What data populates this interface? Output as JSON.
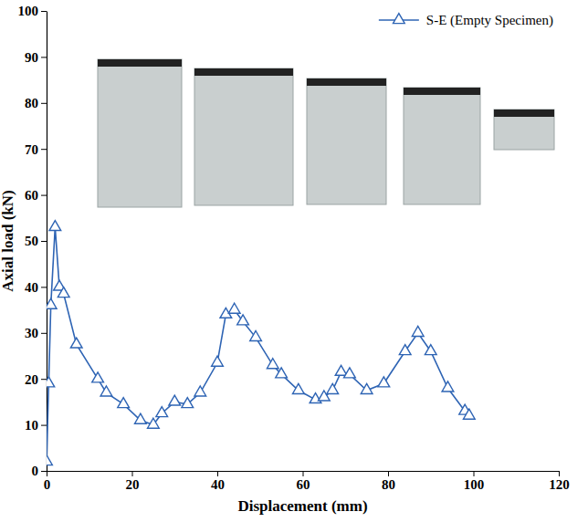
{
  "chart_data": {
    "type": "line",
    "x_label": "Displacement (mm)",
    "y_label": "Axial load (kN)",
    "x": [
      0,
      0.5,
      1,
      2,
      3,
      4,
      7,
      12,
      14,
      18,
      22,
      25,
      27,
      30,
      33,
      36,
      40,
      42,
      44,
      46,
      49,
      53,
      55,
      59,
      63,
      65,
      67,
      69,
      71,
      75,
      79,
      84,
      87,
      90,
      94,
      98,
      99
    ],
    "series": [
      {
        "name": "S-E (Empty Specimen)",
        "color": "#2e64b4",
        "marker": "triangle",
        "line_style": "solid",
        "values": [
          2,
          19,
          36,
          53,
          40,
          38.5,
          27.5,
          20,
          17,
          14.5,
          11,
          10,
          12.5,
          15,
          14.5,
          17,
          23.5,
          34,
          35,
          32.5,
          29,
          23,
          21,
          17.5,
          15.5,
          16,
          17.5,
          21.5,
          21,
          17.5,
          19,
          26,
          30,
          26,
          18,
          13,
          12
        ]
      }
    ],
    "xlim": [
      0,
      120
    ],
    "xticks": [
      0,
      20,
      40,
      60,
      80,
      100,
      120
    ],
    "ylim": [
      0,
      100
    ],
    "yticks": [
      0,
      10,
      20,
      30,
      40,
      50,
      60,
      70,
      80,
      90,
      100
    ],
    "legend": "top-right",
    "grid": false
  }
}
